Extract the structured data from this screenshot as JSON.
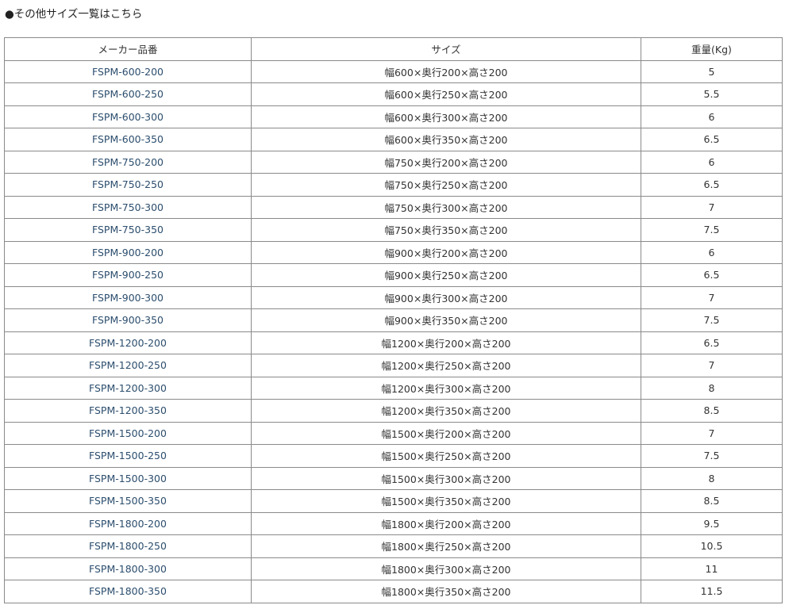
{
  "heading": "●その他サイズ一覧はこちら",
  "table": {
    "headers": [
      "メーカー品番",
      "サイズ",
      "重量(Kg)"
    ],
    "rows": [
      {
        "code": "FSPM-600-200",
        "size": "幅600×奥行200×高さ200",
        "weight": "5"
      },
      {
        "code": "FSPM-600-250",
        "size": "幅600×奥行250×高さ200",
        "weight": "5.5"
      },
      {
        "code": "FSPM-600-300",
        "size": "幅600×奥行300×高さ200",
        "weight": "6"
      },
      {
        "code": "FSPM-600-350",
        "size": "幅600×奥行350×高さ200",
        "weight": "6.5"
      },
      {
        "code": "FSPM-750-200",
        "size": "幅750×奥行200×高さ200",
        "weight": "6"
      },
      {
        "code": "FSPM-750-250",
        "size": "幅750×奥行250×高さ200",
        "weight": "6.5"
      },
      {
        "code": "FSPM-750-300",
        "size": "幅750×奥行300×高さ200",
        "weight": "7"
      },
      {
        "code": "FSPM-750-350",
        "size": "幅750×奥行350×高さ200",
        "weight": "7.5"
      },
      {
        "code": "FSPM-900-200",
        "size": "幅900×奥行200×高さ200",
        "weight": "6"
      },
      {
        "code": "FSPM-900-250",
        "size": "幅900×奥行250×高さ200",
        "weight": "6.5"
      },
      {
        "code": "FSPM-900-300",
        "size": "幅900×奥行300×高さ200",
        "weight": "7"
      },
      {
        "code": "FSPM-900-350",
        "size": "幅900×奥行350×高さ200",
        "weight": "7.5"
      },
      {
        "code": "FSPM-1200-200",
        "size": "幅1200×奥行200×高さ200",
        "weight": "6.5"
      },
      {
        "code": "FSPM-1200-250",
        "size": "幅1200×奥行250×高さ200",
        "weight": "7"
      },
      {
        "code": "FSPM-1200-300",
        "size": "幅1200×奥行300×高さ200",
        "weight": "8"
      },
      {
        "code": "FSPM-1200-350",
        "size": "幅1200×奥行350×高さ200",
        "weight": "8.5"
      },
      {
        "code": "FSPM-1500-200",
        "size": "幅1500×奥行200×高さ200",
        "weight": "7"
      },
      {
        "code": "FSPM-1500-250",
        "size": "幅1500×奥行250×高さ200",
        "weight": "7.5"
      },
      {
        "code": "FSPM-1500-300",
        "size": "幅1500×奥行300×高さ200",
        "weight": "8"
      },
      {
        "code": "FSPM-1500-350",
        "size": "幅1500×奥行350×高さ200",
        "weight": "8.5"
      },
      {
        "code": "FSPM-1800-200",
        "size": "幅1800×奥行200×高さ200",
        "weight": "9.5"
      },
      {
        "code": "FSPM-1800-250",
        "size": "幅1800×奥行250×高さ200",
        "weight": "10.5"
      },
      {
        "code": "FSPM-1800-300",
        "size": "幅1800×奥行300×高さ200",
        "weight": "11"
      },
      {
        "code": "FSPM-1800-350",
        "size": "幅1800×奥行350×高さ200",
        "weight": "11.5"
      }
    ]
  }
}
